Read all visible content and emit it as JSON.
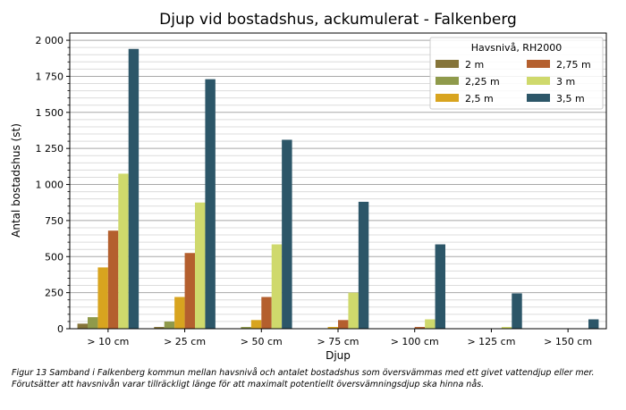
{
  "chart_data": {
    "type": "bar",
    "title": "Djup vid bostadshus, ackumulerat - Falkenberg",
    "xlabel": "Djup",
    "ylabel": "Antal bostadshus (st)",
    "ylim": [
      0,
      2050
    ],
    "yticks": [
      0,
      250,
      500,
      750,
      1000,
      1250,
      1500,
      1750,
      2000
    ],
    "ytick_labels": [
      "0",
      "250",
      "500",
      "750",
      "1 000",
      "1 250",
      "1 500",
      "1 750",
      "2 000"
    ],
    "grid": "horizontal major and minor",
    "legend_title": "Havsnivå, RH2000",
    "legend_position": "top-right",
    "categories": [
      "> 10 cm",
      "> 25 cm",
      "> 50 cm",
      "> 75 cm",
      "> 100 cm",
      "> 125 cm",
      "> 150 cm"
    ],
    "series": [
      {
        "name": "2 m",
        "color": "#857439",
        "values": [
          35,
          12,
          3,
          0,
          0,
          0,
          0
        ]
      },
      {
        "name": "2,25 m",
        "color": "#8f9a4b",
        "values": [
          80,
          50,
          12,
          3,
          0,
          0,
          0
        ]
      },
      {
        "name": "2,5 m",
        "color": "#d8a41f",
        "values": [
          425,
          220,
          60,
          12,
          3,
          0,
          0
        ]
      },
      {
        "name": "2,75 m",
        "color": "#b45f2e",
        "values": [
          680,
          525,
          220,
          60,
          12,
          3,
          0
        ]
      },
      {
        "name": "3 m",
        "color": "#cfd96c",
        "values": [
          1075,
          875,
          585,
          250,
          65,
          12,
          3
        ]
      },
      {
        "name": "3,5 m",
        "color": "#2c5668",
        "values": [
          1940,
          1730,
          1310,
          880,
          585,
          245,
          65
        ]
      }
    ]
  },
  "caption": "Figur 13 Samband i Falkenberg kommun mellan havsnivå och antalet bostadshus som översvämmas med ett givet vattendjup eller mer. Förutsätter att havsnivån varar tillräckligt länge för att maximalt potentiellt översvämningsdjup ska hinna nås."
}
